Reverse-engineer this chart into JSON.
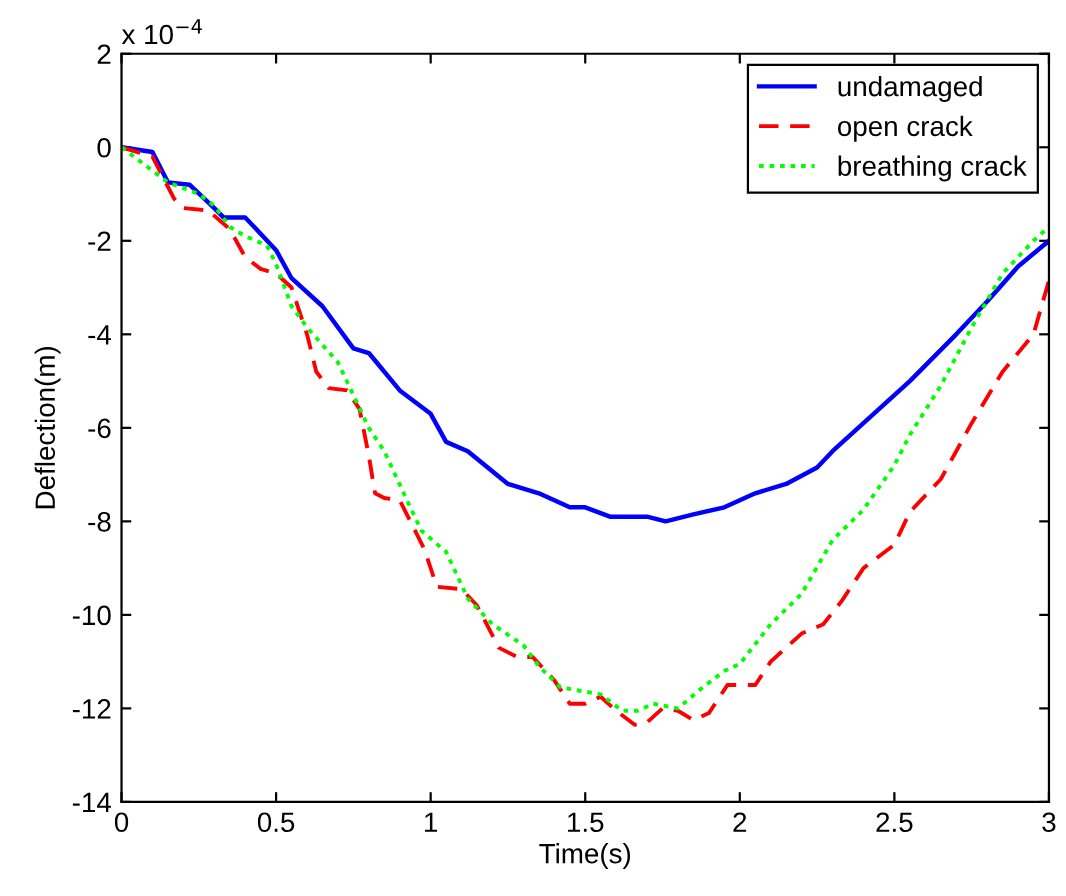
{
  "chart_data": {
    "type": "line",
    "xlabel": "Time(s)",
    "ylabel": "Deflection(m)",
    "annotations": [
      "x 10$^{−4}$"
    ],
    "xlim": [
      0,
      3
    ],
    "xticks": [
      0,
      0.5,
      1,
      1.5,
      2,
      2.5,
      3
    ],
    "ylim": [
      -14,
      2
    ],
    "yticks": [
      -14,
      -12,
      -10,
      -8,
      -6,
      -4,
      -2,
      0,
      2
    ],
    "grid": false,
    "legend": "top right",
    "series": [
      {
        "name": "undamaged",
        "color": "#0000ff",
        "line_style": "solid",
        "x": [
          0,
          0.1,
          0.15,
          0.22,
          0.3,
          0.33,
          0.4,
          0.5,
          0.55,
          0.65,
          0.75,
          0.8,
          0.9,
          1.0,
          1.05,
          1.12,
          1.25,
          1.35,
          1.45,
          1.5,
          1.58,
          1.7,
          1.76,
          1.85,
          1.95,
          2.05,
          2.15,
          2.25,
          2.3,
          2.45,
          2.55,
          2.7,
          2.8,
          2.9,
          3.0
        ],
        "values": [
          0,
          -0.1,
          -0.75,
          -0.8,
          -1.3,
          -1.5,
          -1.5,
          -2.2,
          -2.8,
          -3.4,
          -4.3,
          -4.4,
          -5.2,
          -5.7,
          -6.3,
          -6.5,
          -7.2,
          -7.4,
          -7.7,
          -7.7,
          -7.9,
          -7.9,
          -8.0,
          -7.85,
          -7.7,
          -7.4,
          -7.2,
          -6.85,
          -6.5,
          -5.6,
          -5.0,
          -4.0,
          -3.3,
          -2.55,
          -2.0
        ]
      },
      {
        "name": "open crack",
        "color": "#ff0000",
        "line_style": "dashed",
        "x": [
          0,
          0.1,
          0.17,
          0.2,
          0.28,
          0.35,
          0.4,
          0.45,
          0.5,
          0.55,
          0.6,
          0.63,
          0.67,
          0.73,
          0.77,
          0.8,
          0.82,
          0.85,
          0.9,
          0.98,
          1.02,
          1.1,
          1.15,
          1.22,
          1.28,
          1.33,
          1.4,
          1.45,
          1.5,
          1.55,
          1.6,
          1.66,
          1.7,
          1.75,
          1.8,
          1.85,
          1.9,
          1.96,
          2.05,
          2.1,
          2.2,
          2.27,
          2.33,
          2.4,
          2.5,
          2.55,
          2.65,
          2.7,
          2.75,
          2.85,
          2.95,
          3.0
        ],
        "values": [
          0,
          -0.2,
          -1.1,
          -1.3,
          -1.35,
          -1.75,
          -2.35,
          -2.6,
          -2.7,
          -3.0,
          -4.0,
          -4.8,
          -5.15,
          -5.2,
          -5.6,
          -6.6,
          -7.4,
          -7.5,
          -7.55,
          -8.6,
          -9.4,
          -9.45,
          -9.8,
          -10.7,
          -10.9,
          -10.9,
          -11.4,
          -11.9,
          -11.9,
          -11.75,
          -12.05,
          -12.35,
          -12.3,
          -12.0,
          -12.05,
          -12.25,
          -12.1,
          -11.5,
          -11.5,
          -11.0,
          -10.4,
          -10.2,
          -9.7,
          -9.0,
          -8.5,
          -7.8,
          -7.1,
          -6.5,
          -5.9,
          -4.8,
          -4.0,
          -2.85
        ]
      },
      {
        "name": "breathing crack",
        "color": "#00ff00",
        "line_style": "dotted",
        "x": [
          0,
          0.15,
          0.25,
          0.3,
          0.35,
          0.4,
          0.47,
          0.5,
          0.55,
          0.6,
          0.7,
          0.75,
          0.8,
          0.85,
          0.92,
          0.97,
          1.05,
          1.12,
          1.2,
          1.3,
          1.35,
          1.42,
          1.55,
          1.62,
          1.67,
          1.72,
          1.8,
          1.88,
          1.95,
          2.0,
          2.1,
          2.2,
          2.3,
          2.4,
          2.5,
          2.55,
          2.65,
          2.75,
          2.85,
          2.95,
          3.0
        ],
        "values": [
          0,
          -0.75,
          -1.0,
          -1.25,
          -1.7,
          -1.9,
          -2.1,
          -2.5,
          -3.4,
          -3.85,
          -4.6,
          -5.3,
          -6.0,
          -6.5,
          -7.5,
          -8.2,
          -8.65,
          -9.65,
          -10.2,
          -10.65,
          -11.1,
          -11.55,
          -11.7,
          -12.05,
          -12.05,
          -11.9,
          -12.0,
          -11.55,
          -11.2,
          -11.05,
          -10.2,
          -9.55,
          -8.4,
          -7.75,
          -6.8,
          -6.15,
          -5.1,
          -3.85,
          -2.7,
          -2.0,
          -1.7
        ]
      }
    ]
  }
}
